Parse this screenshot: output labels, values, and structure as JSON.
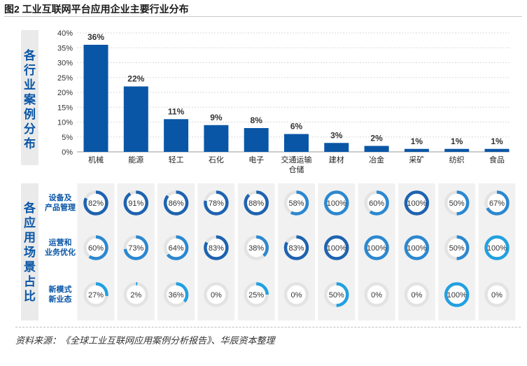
{
  "title": "图2 工业互联网平台应用企业主要行业分布",
  "source": "资料来源：《全球工业互联网应用案例分析报告》、华辰资本整理",
  "colors": {
    "bar": "#0a56a6",
    "donut_dark": "#1e63b0",
    "donut_light": "#22a0e0",
    "donut_track": "#e3e3e3",
    "panel": "#eaeaea",
    "label_blue": "#0a56a6"
  },
  "chart_data": [
    {
      "type": "bar",
      "side_label": "各行业案例分布",
      "categories": [
        "机械",
        "能源",
        "轻工",
        "石化",
        "电子",
        "交通运输仓储",
        "建材",
        "冶金",
        "采矿",
        "纺织",
        "食品"
      ],
      "values": [
        36,
        22,
        11,
        9,
        8,
        6,
        3,
        2,
        1,
        1,
        1
      ],
      "value_labels": [
        "36%",
        "22%",
        "11%",
        "9%",
        "8%",
        "6%",
        "3%",
        "2%",
        "1%",
        "1%",
        "1%"
      ],
      "y_ticks": [
        "0%",
        "5%",
        "10%",
        "15%",
        "20%",
        "25%",
        "30%",
        "35%",
        "40%"
      ],
      "ylim": [
        0,
        40
      ],
      "grid": true
    },
    {
      "type": "donut-matrix",
      "side_label": "各应用场景占比",
      "categories": [
        "机械",
        "能源",
        "轻工",
        "石化",
        "电子",
        "交通运输仓储",
        "建材",
        "冶金",
        "采矿",
        "纺织",
        "食品"
      ],
      "rows": [
        {
          "name": "设备及产品管理",
          "name_lines": [
            "设备及",
            "产品管理"
          ],
          "values": [
            82,
            91,
            86,
            78,
            88,
            58,
            100,
            60,
            100,
            50,
            67
          ],
          "labels": [
            "82%",
            "91%",
            "86%",
            "78%",
            "88%",
            "58%",
            "100%",
            "60%",
            "100%",
            "50%",
            "67%"
          ],
          "styles": [
            "dark",
            "dark",
            "dark",
            "dark",
            "dark",
            "light",
            "light",
            "light",
            "dark",
            "light",
            "light"
          ]
        },
        {
          "name": "运营和业务优化",
          "name_lines": [
            "运营和",
            "业务优化"
          ],
          "values": [
            60,
            73,
            64,
            83,
            38,
            83,
            100,
            100,
            100,
            50,
            100
          ],
          "labels": [
            "60%",
            "73%",
            "64%",
            "83%",
            "38%",
            "83%",
            "100%",
            "100%",
            "100%",
            "50%",
            "100%"
          ],
          "styles": [
            "light",
            "light",
            "light",
            "dark",
            "light",
            "dark",
            "dark",
            "light",
            "light",
            "light",
            "cyan"
          ]
        },
        {
          "name": "新模式新业态",
          "name_lines": [
            "新模式",
            "新业态"
          ],
          "values": [
            27,
            2,
            36,
            0,
            25,
            0,
            50,
            0,
            0,
            100,
            0
          ],
          "labels": [
            "27%",
            "2%",
            "36%",
            "0%",
            "25%",
            "0%",
            "50%",
            "0%",
            "0%",
            "100%",
            "0%"
          ],
          "styles": [
            "cyan",
            "cyan",
            "cyan",
            "cyan",
            "cyan",
            "cyan",
            "cyan",
            "cyan",
            "cyan",
            "cyan",
            "cyan"
          ]
        }
      ]
    }
  ]
}
